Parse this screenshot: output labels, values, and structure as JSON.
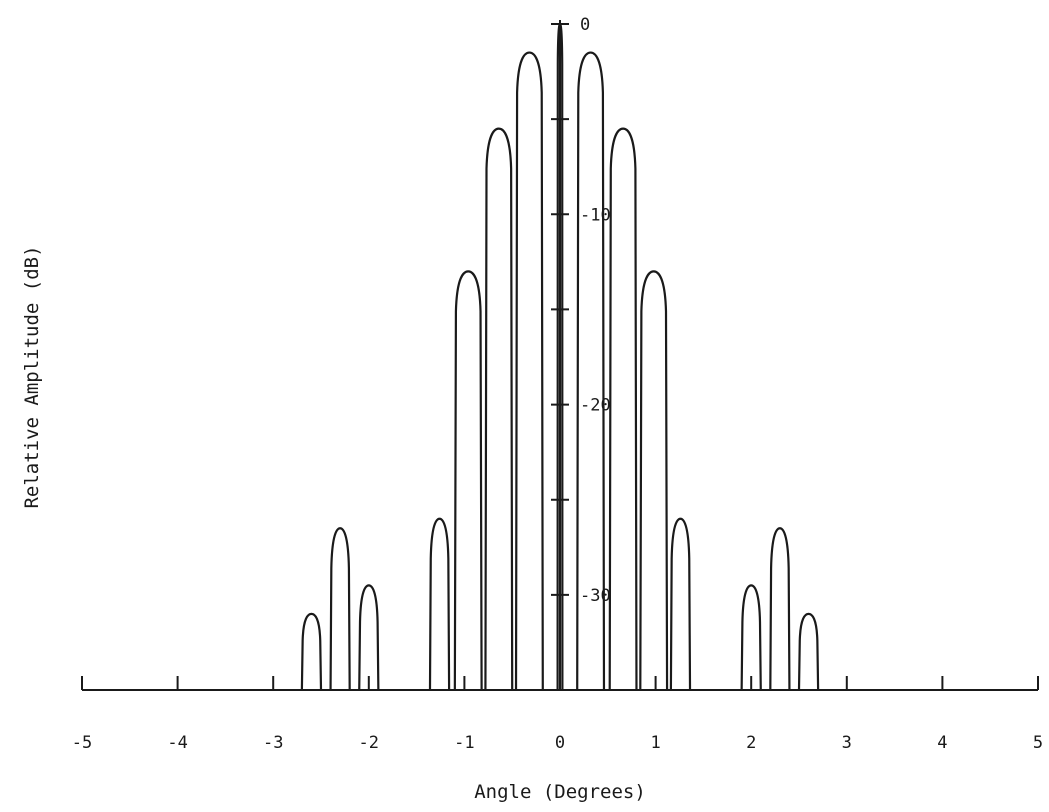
{
  "chart_data": {
    "type": "line",
    "title": "",
    "xlabel": "Angle (Degrees)",
    "ylabel": "Relative Amplitude (dB)",
    "xlim": [
      -5,
      5
    ],
    "ylim": [
      -35,
      0
    ],
    "x_ticks": [
      "-5",
      "-4",
      "-3",
      "-2",
      "-1",
      "0",
      "1",
      "2",
      "3",
      "4",
      "5"
    ],
    "y_tick_labels": [
      "0",
      "-10",
      "-20",
      "-30"
    ],
    "grid": false,
    "legend": "none",
    "series": [
      {
        "peaks": [
          {
            "x": 0.0,
            "y": 0.0
          },
          {
            "x": -0.32,
            "y": -1.5
          },
          {
            "x": 0.32,
            "y": -1.5
          },
          {
            "x": -0.64,
            "y": -5.5
          },
          {
            "x": 0.66,
            "y": -5.5
          },
          {
            "x": -0.96,
            "y": -13
          },
          {
            "x": 0.98,
            "y": -13
          },
          {
            "x": -1.26,
            "y": -26
          },
          {
            "x": 1.26,
            "y": -26
          },
          {
            "x": -2.3,
            "y": -26.5
          },
          {
            "x": 2.3,
            "y": -26.5
          },
          {
            "x": -2.0,
            "y": -29.5
          },
          {
            "x": 2.0,
            "y": -29.5
          },
          {
            "x": -2.6,
            "y": -31
          },
          {
            "x": 2.6,
            "y": -31
          }
        ]
      }
    ]
  }
}
